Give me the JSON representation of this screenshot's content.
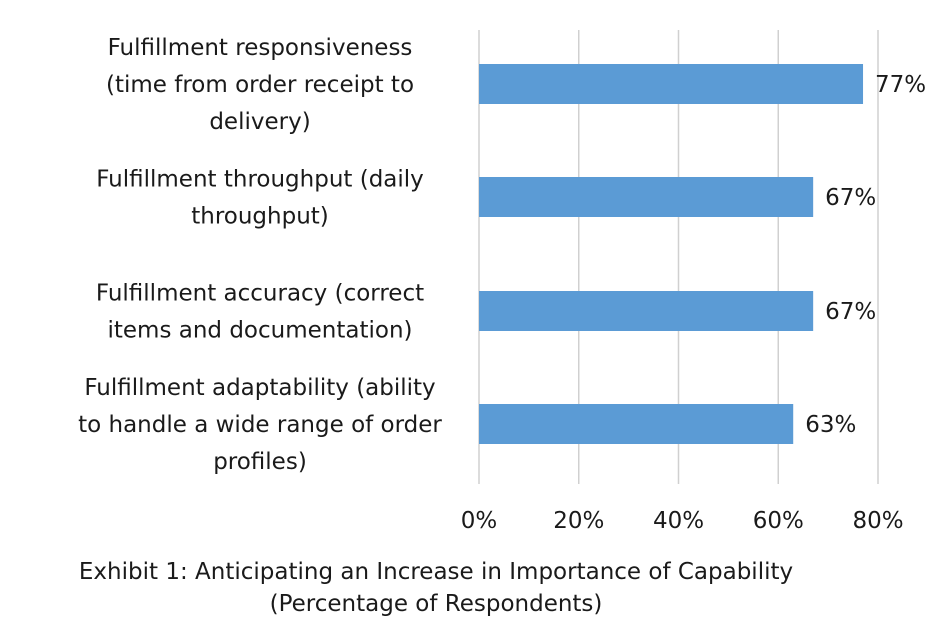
{
  "chart_data": {
    "type": "bar",
    "orientation": "horizontal",
    "categories": [
      [
        "Fulfillment responsiveness",
        "(time from order receipt to",
        "delivery)"
      ],
      [
        "Fulfillment throughput (daily",
        "throughput)"
      ],
      [
        "Fulfillment accuracy (correct",
        "items and documentation)"
      ],
      [
        "Fulfillment adaptability (ability",
        "to handle a wide range of order",
        "profiles)"
      ]
    ],
    "values": [
      77,
      67,
      67,
      63
    ],
    "data_labels": [
      "77%",
      "67%",
      "67%",
      "63%"
    ],
    "xlim": [
      0,
      80
    ],
    "xticks": [
      0,
      20,
      40,
      60,
      80
    ],
    "xtick_labels": [
      "0%",
      "20%",
      "40%",
      "60%",
      "80%"
    ],
    "grid": "vertical",
    "bar_color": "#5b9bd5"
  },
  "caption": {
    "line1": "Exhibit 1: Anticipating an Increase in Importance of  Capability",
    "line2": "(Percentage of Respondents)"
  }
}
